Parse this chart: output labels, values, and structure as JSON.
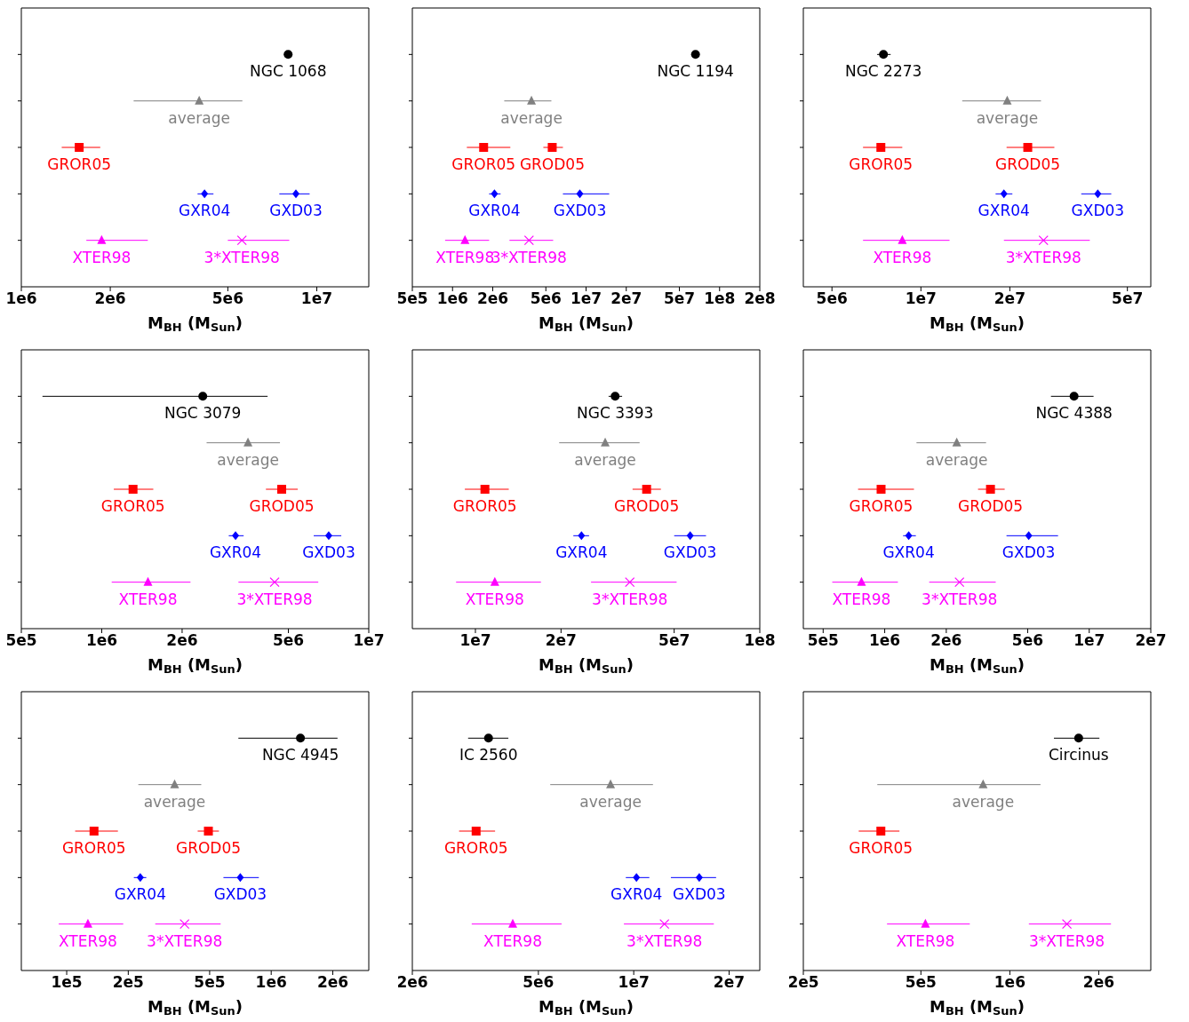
{
  "chart_data": [
    {
      "type": "scatter",
      "orientation": "horizontal",
      "log": "x",
      "xlabel": "M$_{BH}$ (M$_{Sun}$)",
      "categories": [
        null,
        null,
        null,
        null,
        null
      ],
      "xlim": [
        1000000.0,
        15000000.0
      ],
      "xticks": [
        {
          "value": 1000000.0,
          "label": "1e6"
        },
        {
          "value": 2000000.0,
          "label": "2e6"
        },
        {
          "value": 5000000.0,
          "label": "5e6"
        },
        {
          "value": 10000000.0,
          "label": "1e7"
        }
      ],
      "series": [
        {
          "name": "NGC 1068",
          "color": "#000000",
          "marker": "circle",
          "values": [
            8000000.0,
            null,
            null,
            null,
            null
          ]
        },
        {
          "name": "average",
          "color": "#808080",
          "marker": "triangle",
          "values": [
            null,
            4000000.0,
            null,
            null,
            null
          ],
          "errors": [
            null,
            [
              2400000.0,
              5600000.0
            ],
            null,
            null,
            null
          ]
        },
        {
          "name": "GROR05",
          "color": "#ff0000",
          "marker": "square",
          "values": [
            null,
            null,
            1570000.0,
            null,
            null
          ],
          "errors": [
            null,
            null,
            [
              1370000.0,
              1850000.0
            ],
            null,
            null
          ]
        },
        {
          "name": "GXR04",
          "color": "#0000ff",
          "marker": "diamond",
          "values": [
            null,
            null,
            null,
            4170000.0,
            null
          ],
          "errors": [
            null,
            null,
            null,
            [
              3950000.0,
              4470000.0
            ],
            null
          ]
        },
        {
          "name": "GXD03",
          "color": "#0000ff",
          "marker": "diamond",
          "values": [
            null,
            null,
            null,
            8500000.0,
            null
          ],
          "errors": [
            null,
            null,
            null,
            [
              7470000.0,
              9460000.0
            ],
            null
          ]
        },
        {
          "name": "XTER98",
          "color": "#ff00ff",
          "marker": "triangle",
          "values": [
            null,
            null,
            null,
            null,
            1870000.0
          ],
          "errors": [
            null,
            null,
            null,
            null,
            [
              1660000.0,
              2680000.0
            ]
          ]
        },
        {
          "name": "3*XTER98",
          "color": "#ff00ff",
          "marker": "cross",
          "values": [
            null,
            null,
            null,
            null,
            5580000.0
          ],
          "errors": [
            null,
            null,
            null,
            null,
            [
              5000000.0,
              8070000.0
            ]
          ]
        }
      ]
    },
    {
      "type": "scatter",
      "orientation": "horizontal",
      "log": "x",
      "xlabel": "M$_{BH}$ (M$_{Sun}$)",
      "categories": [
        null,
        null,
        null,
        null,
        null
      ],
      "xlim": [
        500000.0,
        200000000.0
      ],
      "xticks": [
        {
          "value": 500000.0,
          "label": "5e5"
        },
        {
          "value": 1000000.0,
          "label": "1e6"
        },
        {
          "value": 2000000.0,
          "label": "2e6"
        },
        {
          "value": 5000000.0,
          "label": "5e6"
        },
        {
          "value": 10000000.0,
          "label": "1e7"
        },
        {
          "value": 20000000.0,
          "label": "2e7"
        },
        {
          "value": 50000000.0,
          "label": "5e7"
        },
        {
          "value": 100000000.0,
          "label": "1e8"
        },
        {
          "value": 200000000.0,
          "label": "2e8"
        }
      ],
      "series": [
        {
          "name": "NGC 1194",
          "color": "#000000",
          "marker": "circle",
          "values": [
            66000000.0,
            null,
            null,
            null,
            null
          ]
        },
        {
          "name": "average",
          "color": "#808080",
          "marker": "triangle",
          "values": [
            null,
            3900000.0,
            null,
            null,
            null
          ],
          "errors": [
            null,
            [
              2440000.0,
              5500000.0
            ],
            null,
            null,
            null
          ]
        },
        {
          "name": "GROR05",
          "color": "#ff0000",
          "marker": "square",
          "values": [
            null,
            null,
            1710000.0,
            null,
            null
          ],
          "errors": [
            null,
            null,
            [
              1280000.0,
              2710000.0
            ],
            null,
            null
          ]
        },
        {
          "name": "GROD05",
          "color": "#ff0000",
          "marker": "square",
          "values": [
            null,
            null,
            5580000.0,
            null,
            null
          ],
          "errors": [
            null,
            null,
            [
              4790000.0,
              6710000.0
            ],
            null,
            null
          ]
        },
        {
          "name": "GXR04",
          "color": "#0000ff",
          "marker": "diamond",
          "values": [
            null,
            null,
            null,
            2060000.0,
            null
          ],
          "errors": [
            null,
            null,
            null,
            [
              1880000.0,
              2290000.0
            ],
            null
          ]
        },
        {
          "name": "GXD03",
          "color": "#0000ff",
          "marker": "diamond",
          "values": [
            null,
            null,
            null,
            8980000.0,
            null
          ],
          "errors": [
            null,
            null,
            null,
            [
              6710000.0,
              14900000.0
            ],
            null
          ]
        },
        {
          "name": "XTER98",
          "color": "#ff00ff",
          "marker": "triangle",
          "values": [
            null,
            null,
            null,
            null,
            1240000.0
          ],
          "errors": [
            null,
            null,
            null,
            null,
            [
              880000.0,
              1880000.0
            ]
          ]
        },
        {
          "name": "3*XTER98",
          "color": "#ff00ff",
          "marker": "cross",
          "values": [
            null,
            null,
            null,
            null,
            3740000.0
          ],
          "errors": [
            null,
            null,
            null,
            null,
            [
              2670000.0,
              5670000.0
            ]
          ]
        }
      ]
    },
    {
      "type": "scatter",
      "orientation": "horizontal",
      "log": "x",
      "xlabel": "M$_{BH}$ (M$_{Sun}$)",
      "categories": [
        null,
        null,
        null,
        null,
        null
      ],
      "xlim": [
        4000000.0,
        60000000.0
      ],
      "xticks": [
        {
          "value": 5000000.0,
          "label": "5e6"
        },
        {
          "value": 10000000.0,
          "label": "1e7"
        },
        {
          "value": 20000000.0,
          "label": "2e7"
        },
        {
          "value": 50000000.0,
          "label": "5e7"
        }
      ],
      "series": [
        {
          "name": "NGC 2273",
          "color": "#000000",
          "marker": "circle",
          "values": [
            7470000.0,
            null,
            null,
            null,
            null
          ],
          "errors": [
            [
              7110000.0,
              7900000.0
            ],
            null,
            null,
            null,
            null
          ]
        },
        {
          "name": "average",
          "color": "#808080",
          "marker": "triangle",
          "values": [
            null,
            19600000.0,
            null,
            null,
            null
          ],
          "errors": [
            null,
            [
              13800000.0,
              25500000.0
            ],
            null,
            null,
            null
          ]
        },
        {
          "name": "GROR05",
          "color": "#ff0000",
          "marker": "square",
          "values": [
            null,
            null,
            7320000.0,
            null,
            null
          ],
          "errors": [
            null,
            null,
            [
              6370000.0,
              8650000.0
            ],
            null,
            null
          ]
        },
        {
          "name": "GROD05",
          "color": "#ff0000",
          "marker": "square",
          "values": [
            null,
            null,
            23000000.0,
            null,
            null
          ],
          "errors": [
            null,
            null,
            [
              19500000.0,
              28300000.0
            ],
            null,
            null
          ]
        },
        {
          "name": "GXR04",
          "color": "#0000ff",
          "marker": "diamond",
          "values": [
            null,
            null,
            null,
            19100000.0,
            null
          ],
          "errors": [
            null,
            null,
            null,
            [
              17900000.0,
              20400000.0
            ],
            null
          ]
        },
        {
          "name": "GXD03",
          "color": "#0000ff",
          "marker": "diamond",
          "values": [
            null,
            null,
            null,
            39700000.0,
            null
          ],
          "errors": [
            null,
            null,
            null,
            [
              34900000.0,
              44100000.0
            ],
            null
          ]
        },
        {
          "name": "XTER98",
          "color": "#ff00ff",
          "marker": "triangle",
          "values": [
            null,
            null,
            null,
            null,
            8650000.0
          ],
          "errors": [
            null,
            null,
            null,
            null,
            [
              6370000.0,
              12500000.0
            ]
          ]
        },
        {
          "name": "3*XTER98",
          "color": "#ff00ff",
          "marker": "cross",
          "values": [
            null,
            null,
            null,
            null,
            26000000.0
          ],
          "errors": [
            null,
            null,
            null,
            null,
            [
              19100000.0,
              37300000.0
            ]
          ]
        }
      ]
    },
    {
      "type": "scatter",
      "orientation": "horizontal",
      "log": "x",
      "xlabel": "M$_{BH}$ (M$_{Sun}$)",
      "categories": [
        null,
        null,
        null,
        null,
        null
      ],
      "xlim": [
        500000.0,
        10000000.0
      ],
      "xticks": [
        {
          "value": 500000.0,
          "label": "5e5"
        },
        {
          "value": 1000000.0,
          "label": "1e6"
        },
        {
          "value": 2000000.0,
          "label": "2e6"
        },
        {
          "value": 5000000.0,
          "label": "5e6"
        },
        {
          "value": 10000000.0,
          "label": "1e7"
        }
      ],
      "series": [
        {
          "name": "NGC 3079",
          "color": "#000000",
          "marker": "circle",
          "values": [
            2390000.0,
            null,
            null,
            null,
            null
          ],
          "errors": [
            [
              600000.0,
              4180000.0
            ],
            null,
            null,
            null,
            null
          ]
        },
        {
          "name": "average",
          "color": "#808080",
          "marker": "triangle",
          "values": [
            null,
            3530000.0,
            null,
            null,
            null
          ],
          "errors": [
            null,
            [
              2470000.0,
              4650000.0
            ],
            null,
            null,
            null
          ]
        },
        {
          "name": "GROR05",
          "color": "#ff0000",
          "marker": "square",
          "values": [
            null,
            null,
            1310000.0,
            null,
            null
          ],
          "errors": [
            null,
            null,
            [
              1110000.0,
              1560000.0
            ],
            null,
            null
          ]
        },
        {
          "name": "GROD05",
          "color": "#ff0000",
          "marker": "square",
          "values": [
            null,
            null,
            4720000.0,
            null,
            null
          ],
          "errors": [
            null,
            null,
            [
              4120000.0,
              5420000.0
            ],
            null,
            null
          ]
        },
        {
          "name": "GXR04",
          "color": "#0000ff",
          "marker": "diamond",
          "values": [
            null,
            null,
            null,
            3170000.0,
            null
          ],
          "errors": [
            null,
            null,
            null,
            [
              2990000.0,
              3400000.0
            ],
            null
          ]
        },
        {
          "name": "GXD03",
          "color": "#0000ff",
          "marker": "diamond",
          "values": [
            null,
            null,
            null,
            7080000.0,
            null
          ],
          "errors": [
            null,
            null,
            null,
            [
              6220000.0,
              7890000.0
            ],
            null
          ]
        },
        {
          "name": "XTER98",
          "color": "#ff00ff",
          "marker": "triangle",
          "values": [
            null,
            null,
            null,
            null,
            1490000.0
          ],
          "errors": [
            null,
            null,
            null,
            null,
            [
              1090000.0,
              2150000.0
            ]
          ]
        },
        {
          "name": "3*XTER98",
          "color": "#ff00ff",
          "marker": "cross",
          "values": [
            null,
            null,
            null,
            null,
            4440000.0
          ],
          "errors": [
            null,
            null,
            null,
            null,
            [
              3250000.0,
              6470000.0
            ]
          ]
        }
      ]
    },
    {
      "type": "scatter",
      "orientation": "horizontal",
      "log": "x",
      "xlabel": "M$_{BH}$ (M$_{Sun}$)",
      "categories": [
        null,
        null,
        null,
        null,
        null
      ],
      "xlim": [
        6000000.0,
        100000000.0
      ],
      "xticks": [
        {
          "value": 10000000.0,
          "label": "1e7"
        },
        {
          "value": 20000000.0,
          "label": "2e7"
        },
        {
          "value": 50000000.0,
          "label": "5e7"
        },
        {
          "value": 100000000.0,
          "label": "1e8"
        }
      ],
      "series": [
        {
          "name": "NGC 3393",
          "color": "#000000",
          "marker": "circle",
          "values": [
            31000000.0,
            null,
            null,
            null,
            null
          ],
          "errors": [
            [
              29400000.0,
              32800000.0
            ],
            null,
            null,
            null,
            null
          ]
        },
        {
          "name": "average",
          "color": "#808080",
          "marker": "triangle",
          "values": [
            null,
            28600000.0,
            null,
            null,
            null
          ],
          "errors": [
            null,
            [
              19700000.0,
              37800000.0
            ],
            null,
            null,
            null
          ]
        },
        {
          "name": "GROR05",
          "color": "#ff0000",
          "marker": "square",
          "values": [
            null,
            null,
            10800000.0,
            null,
            null
          ],
          "errors": [
            null,
            null,
            [
              9180000.0,
              13100000.0
            ],
            null,
            null
          ]
        },
        {
          "name": "GROD05",
          "color": "#ff0000",
          "marker": "square",
          "values": [
            null,
            null,
            40000000.0,
            null,
            null
          ],
          "errors": [
            null,
            null,
            [
              35700000.0,
              44900000.0
            ],
            null,
            null
          ]
        },
        {
          "name": "GXR04",
          "color": "#0000ff",
          "marker": "diamond",
          "values": [
            null,
            null,
            null,
            23600000.0,
            null
          ],
          "errors": [
            null,
            null,
            null,
            [
              22100000.0,
              25100000.0
            ],
            null
          ]
        },
        {
          "name": "GXD03",
          "color": "#0000ff",
          "marker": "diamond",
          "values": [
            null,
            null,
            null,
            56900000.0,
            null
          ],
          "errors": [
            null,
            null,
            null,
            [
              50000000.0,
              64700000.0
            ],
            null
          ]
        },
        {
          "name": "XTER98",
          "color": "#ff00ff",
          "marker": "triangle",
          "values": [
            null,
            null,
            null,
            null,
            11700000.0
          ],
          "errors": [
            null,
            null,
            null,
            null,
            [
              8550000.0,
              17000000.0
            ]
          ]
        },
        {
          "name": "3*XTER98",
          "color": "#ff00ff",
          "marker": "cross",
          "values": [
            null,
            null,
            null,
            null,
            34900000.0
          ],
          "errors": [
            null,
            null,
            null,
            null,
            [
              25500000.0,
              51000000.0
            ]
          ]
        }
      ]
    },
    {
      "type": "scatter",
      "orientation": "horizontal",
      "log": "x",
      "xlabel": "M$_{BH}$ (M$_{Sun}$)",
      "categories": [
        null,
        null,
        null,
        null,
        null
      ],
      "xlim": [
        400000.0,
        20000000.0
      ],
      "xticks": [
        {
          "value": 500000.0,
          "label": "5e5"
        },
        {
          "value": 1000000.0,
          "label": "1e6"
        },
        {
          "value": 2000000.0,
          "label": "2e6"
        },
        {
          "value": 5000000.0,
          "label": "5e6"
        },
        {
          "value": 10000000.0,
          "label": "1e7"
        },
        {
          "value": 20000000.0,
          "label": "2e7"
        }
      ],
      "series": [
        {
          "name": "NGC 4388",
          "color": "#000000",
          "marker": "circle",
          "values": [
            8430000.0,
            null,
            null,
            null,
            null
          ],
          "errors": [
            [
              6500000.0,
              10500000.0
            ],
            null,
            null,
            null,
            null
          ]
        },
        {
          "name": "average",
          "color": "#808080",
          "marker": "triangle",
          "values": [
            null,
            2250000.0,
            null,
            null,
            null
          ],
          "errors": [
            null,
            [
              1430000.0,
              3130000.0
            ],
            null,
            null,
            null
          ]
        },
        {
          "name": "GROR05",
          "color": "#ff0000",
          "marker": "square",
          "values": [
            null,
            null,
            960000.0,
            null,
            null
          ],
          "errors": [
            null,
            null,
            [
              741000.0,
              1390000.0
            ],
            null,
            null
          ]
        },
        {
          "name": "GROD05",
          "color": "#ff0000",
          "marker": "square",
          "values": [
            null,
            null,
            3290000.0,
            null,
            null
          ],
          "errors": [
            null,
            null,
            [
              2860000.0,
              3860000.0
            ],
            null,
            null
          ]
        },
        {
          "name": "GXR04",
          "color": "#0000ff",
          "marker": "diamond",
          "values": [
            null,
            null,
            null,
            1310000.0,
            null
          ],
          "errors": [
            null,
            null,
            null,
            [
              1230000.0,
              1420000.0
            ],
            null
          ]
        },
        {
          "name": "GXD03",
          "color": "#0000ff",
          "marker": "diamond",
          "values": [
            null,
            null,
            null,
            5060000.0,
            null
          ],
          "errors": [
            null,
            null,
            null,
            [
              3940000.0,
              7040000.0
            ],
            null
          ]
        },
        {
          "name": "XTER98",
          "color": "#ff00ff",
          "marker": "triangle",
          "values": [
            null,
            null,
            null,
            null,
            770000.0
          ],
          "errors": [
            null,
            null,
            null,
            null,
            [
              554000.0,
              1160000.0
            ]
          ]
        },
        {
          "name": "3*XTER98",
          "color": "#ff00ff",
          "marker": "cross",
          "values": [
            null,
            null,
            null,
            null,
            2320000.0
          ],
          "errors": [
            null,
            null,
            null,
            null,
            [
              1650000.0,
              3490000.0
            ]
          ]
        }
      ]
    },
    {
      "type": "scatter",
      "orientation": "horizontal",
      "log": "x",
      "xlabel": "M$_{BH}$ (M$_{Sun}$)",
      "categories": [
        null,
        null,
        null,
        null,
        null
      ],
      "xlim": [
        60000.0,
        3000000.0
      ],
      "xticks": [
        {
          "value": 100000.0,
          "label": "1e5"
        },
        {
          "value": 200000.0,
          "label": "2e5"
        },
        {
          "value": 500000.0,
          "label": "5e5"
        },
        {
          "value": 1000000.0,
          "label": "1e6"
        },
        {
          "value": 2000000.0,
          "label": "2e6"
        }
      ],
      "series": [
        {
          "name": "NGC 4945",
          "color": "#000000",
          "marker": "circle",
          "values": [
            1390000.0,
            null,
            null,
            null,
            null
          ],
          "errors": [
            [
              691000.0,
              2110000.0
            ],
            null,
            null,
            null,
            null
          ]
        },
        {
          "name": "average",
          "color": "#808080",
          "marker": "triangle",
          "values": [
            null,
            337000.0,
            null,
            null,
            null
          ],
          "errors": [
            null,
            [
              224000.0,
              455000.0
            ],
            null,
            null,
            null
          ]
        },
        {
          "name": "GROR05",
          "color": "#ff0000",
          "marker": "square",
          "values": [
            null,
            null,
            136000.0,
            null,
            null
          ],
          "errors": [
            null,
            null,
            [
              110000.0,
              178000.0
            ],
            null,
            null
          ]
        },
        {
          "name": "GROD05",
          "color": "#ff0000",
          "marker": "square",
          "values": [
            null,
            null,
            493000.0,
            null,
            null
          ],
          "errors": [
            null,
            null,
            [
              437000.0,
              555000.0
            ],
            null,
            null
          ]
        },
        {
          "name": "GXR04",
          "color": "#0000ff",
          "marker": "diamond",
          "values": [
            null,
            null,
            null,
            229000.0,
            null
          ],
          "errors": [
            null,
            null,
            null,
            [
              213000.0,
              245000.0
            ],
            null
          ]
        },
        {
          "name": "GXD03",
          "color": "#0000ff",
          "marker": "diamond",
          "values": [
            null,
            null,
            null,
            706000.0,
            null
          ],
          "errors": [
            null,
            null,
            null,
            [
              584000.0,
              870000.0
            ],
            null
          ]
        },
        {
          "name": "XTER98",
          "color": "#ff00ff",
          "marker": "triangle",
          "values": [
            null,
            null,
            null,
            null,
            127000.0
          ],
          "errors": [
            null,
            null,
            null,
            null,
            [
              91400.0,
              189000.0
            ]
          ]
        },
        {
          "name": "3*XTER98",
          "color": "#ff00ff",
          "marker": "cross",
          "values": [
            null,
            null,
            null,
            null,
            377000.0
          ],
          "errors": [
            null,
            null,
            null,
            null,
            [
              271000.0,
              566000.0
            ]
          ]
        }
      ]
    },
    {
      "type": "scatter",
      "orientation": "horizontal",
      "log": "x",
      "xlabel": "M$_{BH}$ (M$_{Sun}$)",
      "categories": [
        null,
        null,
        null,
        null,
        null
      ],
      "xlim": [
        2000000.0,
        25000000.0
      ],
      "xticks": [
        {
          "value": 2000000.0,
          "label": "2e6"
        },
        {
          "value": 5000000.0,
          "label": "5e6"
        },
        {
          "value": 10000000.0,
          "label": "1e7"
        },
        {
          "value": 20000000.0,
          "label": "2e7"
        }
      ],
      "series": [
        {
          "name": "IC 2560",
          "color": "#000000",
          "marker": "circle",
          "values": [
            3480000.0,
            null,
            null,
            null,
            null
          ],
          "errors": [
            [
              3000000.0,
              4020000.0
            ],
            null,
            null,
            null,
            null
          ]
        },
        {
          "name": "average",
          "color": "#808080",
          "marker": "triangle",
          "values": [
            null,
            8450000.0,
            null,
            null,
            null
          ],
          "errors": [
            null,
            [
              5450000.0,
              11500000.0
            ],
            null,
            null,
            null
          ]
        },
        {
          "name": "GROR05",
          "color": "#ff0000",
          "marker": "square",
          "values": [
            null,
            null,
            3180000.0,
            null,
            null
          ],
          "errors": [
            null,
            null,
            [
              2810000.0,
              3650000.0
            ],
            null,
            null
          ]
        },
        {
          "name": "GXR04",
          "color": "#0000ff",
          "marker": "diamond",
          "values": [
            null,
            null,
            null,
            10200000.0,
            null
          ],
          "errors": [
            null,
            null,
            null,
            [
              9440000.0,
              11200000.0
            ],
            null
          ]
        },
        {
          "name": "GXD03",
          "color": "#0000ff",
          "marker": "diamond",
          "values": [
            null,
            null,
            null,
            16100000.0,
            null
          ],
          "errors": [
            null,
            null,
            null,
            [
              13100000.0,
              18200000.0
            ],
            null
          ]
        },
        {
          "name": "XTER98",
          "color": "#ff00ff",
          "marker": "triangle",
          "values": [
            null,
            null,
            null,
            null,
            4150000.0
          ],
          "errors": [
            null,
            null,
            null,
            null,
            [
              3080000.0,
              5920000.0
            ]
          ]
        },
        {
          "name": "3*XTER98",
          "color": "#ff00ff",
          "marker": "cross",
          "values": [
            null,
            null,
            null,
            null,
            12500000.0
          ],
          "errors": [
            null,
            null,
            null,
            null,
            [
              9310000.0,
              17900000.0
            ]
          ]
        }
      ]
    },
    {
      "type": "scatter",
      "orientation": "horizontal",
      "log": "x",
      "xlabel": "M$_{BH}$ (M$_{Sun}$)",
      "categories": [
        null,
        null,
        null,
        null,
        null
      ],
      "xlim": [
        200000.0,
        3000000.0
      ],
      "xticks": [
        {
          "value": 200000.0,
          "label": "2e5"
        },
        {
          "value": 500000.0,
          "label": "5e5"
        },
        {
          "value": 1000000.0,
          "label": "1e6"
        },
        {
          "value": 2000000.0,
          "label": "2e6"
        }
      ],
      "series": [
        {
          "name": "Circinus",
          "color": "#000000",
          "marker": "circle",
          "values": [
            1710000.0,
            null,
            null,
            null,
            null
          ],
          "errors": [
            [
              1410000.0,
              2010000.0
            ],
            null,
            null,
            null,
            null
          ]
        },
        {
          "name": "average",
          "color": "#808080",
          "marker": "triangle",
          "values": [
            null,
            812000.0,
            null,
            null,
            null
          ],
          "errors": [
            null,
            [
              356000.0,
              1270000.0
            ],
            null,
            null,
            null
          ]
        },
        {
          "name": "GROR05",
          "color": "#ff0000",
          "marker": "square",
          "values": [
            null,
            null,
            366000.0,
            null,
            null
          ],
          "errors": [
            null,
            null,
            [
              308000.0,
              423000.0
            ],
            null,
            null
          ]
        },
        {
          "name": "XTER98",
          "color": "#ff00ff",
          "marker": "triangle",
          "values": [
            null,
            null,
            null,
            null,
            518000.0
          ],
          "errors": [
            null,
            null,
            null,
            null,
            [
              384000.0,
              732000.0
            ]
          ]
        },
        {
          "name": "3*XTER98",
          "color": "#ff00ff",
          "marker": "cross",
          "values": [
            null,
            null,
            null,
            null,
            1560000.0
          ],
          "errors": [
            null,
            null,
            null,
            null,
            [
              1160000.0,
              2200000.0
            ]
          ]
        }
      ]
    }
  ]
}
